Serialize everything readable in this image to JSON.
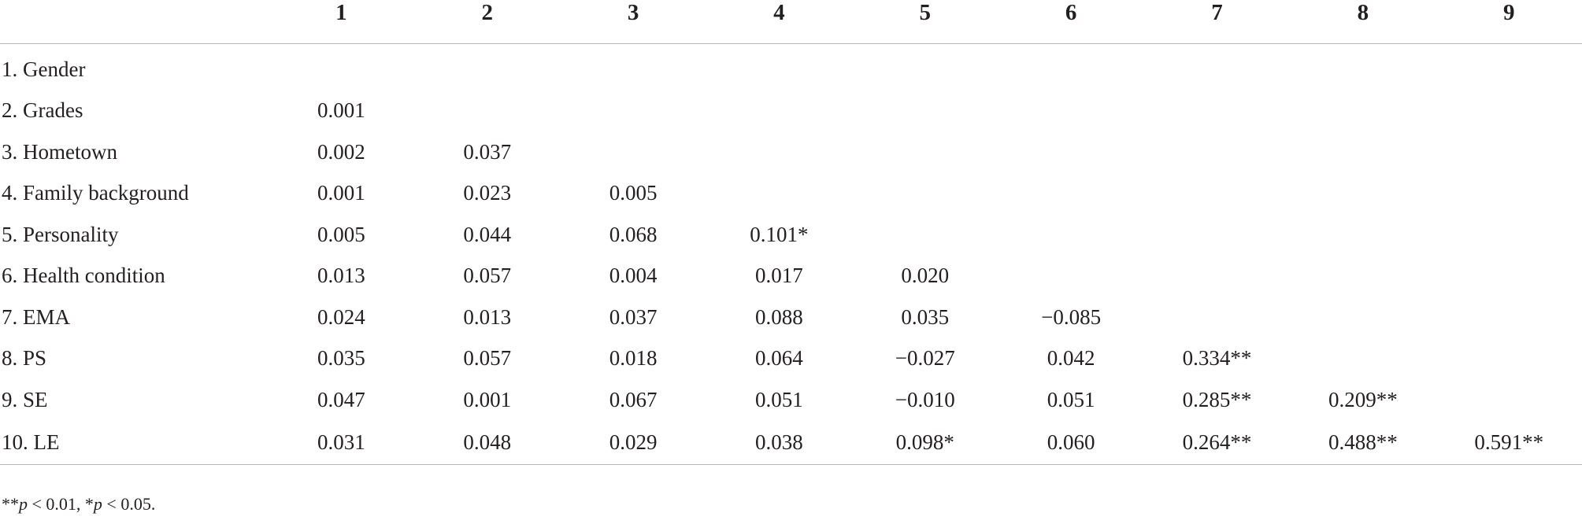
{
  "table": {
    "headers": [
      "",
      "1",
      "2",
      "3",
      "4",
      "5",
      "6",
      "7",
      "8",
      "9"
    ],
    "rows": [
      {
        "label": "1. Gender",
        "cells": [
          "",
          "",
          "",
          "",
          "",
          "",
          "",
          "",
          ""
        ]
      },
      {
        "label": "2. Grades",
        "cells": [
          "0.001",
          "",
          "",
          "",
          "",
          "",
          "",
          "",
          ""
        ]
      },
      {
        "label": "3. Hometown",
        "cells": [
          "0.002",
          "0.037",
          "",
          "",
          "",
          "",
          "",
          "",
          ""
        ]
      },
      {
        "label": "4. Family background",
        "cells": [
          "0.001",
          "0.023",
          "0.005",
          "",
          "",
          "",
          "",
          "",
          ""
        ]
      },
      {
        "label": "5. Personality",
        "cells": [
          "0.005",
          "0.044",
          "0.068",
          "0.101*",
          "",
          "",
          "",
          "",
          ""
        ]
      },
      {
        "label": "6. Health condition",
        "cells": [
          "0.013",
          "0.057",
          "0.004",
          "0.017",
          "0.020",
          "",
          "",
          "",
          ""
        ]
      },
      {
        "label": "7. EMA",
        "cells": [
          "0.024",
          "0.013",
          "0.037",
          "0.088",
          "0.035",
          "−0.085",
          "",
          "",
          ""
        ]
      },
      {
        "label": "8. PS",
        "cells": [
          "0.035",
          "0.057",
          "0.018",
          "0.064",
          "−0.027",
          "0.042",
          "0.334**",
          "",
          ""
        ]
      },
      {
        "label": "9. SE",
        "cells": [
          "0.047",
          "0.001",
          "0.067",
          "0.051",
          "−0.010",
          "0.051",
          "0.285**",
          "0.209**",
          ""
        ]
      },
      {
        "label": "10. LE",
        "cells": [
          "0.031",
          "0.048",
          "0.029",
          "0.038",
          "0.098*",
          "0.060",
          "0.264**",
          "0.488**",
          "0.591**"
        ]
      }
    ]
  },
  "footnote": {
    "part1": "**",
    "p1": "p",
    "part2": " < 0.01, *",
    "p2": "p",
    "part3": " < 0.05."
  }
}
